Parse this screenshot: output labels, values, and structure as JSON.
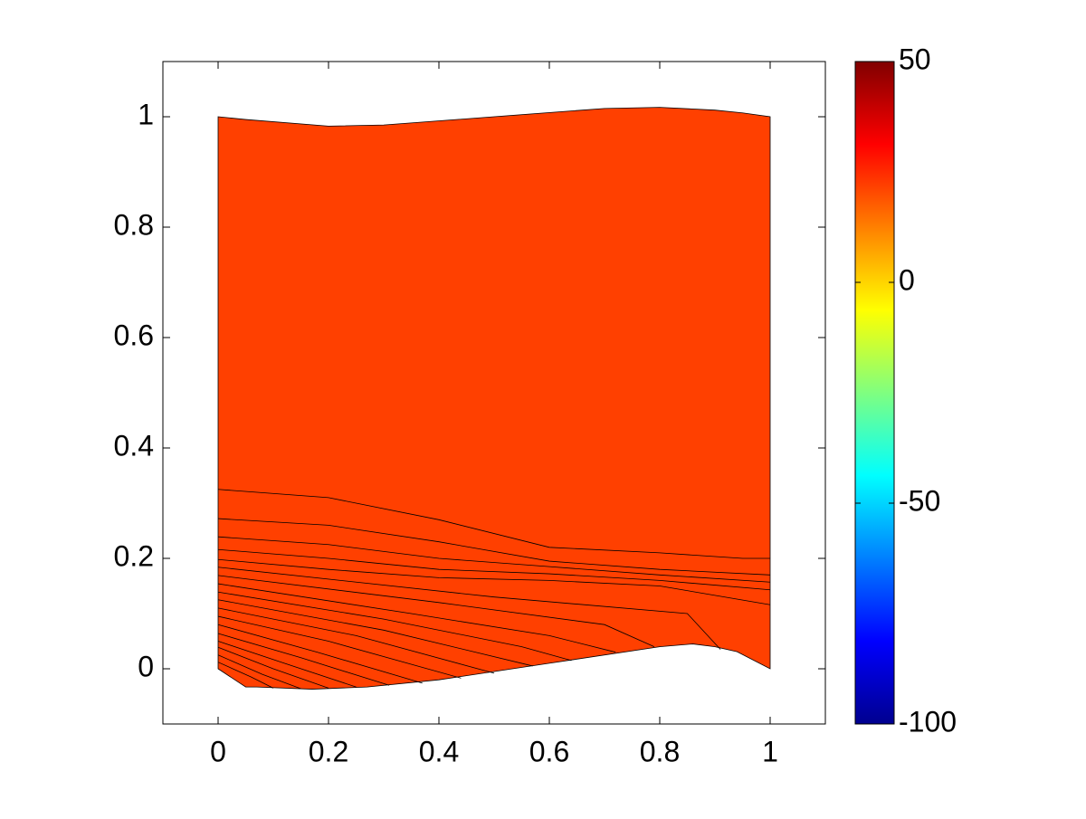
{
  "chart_data": {
    "type": "contour",
    "xlim": [
      -0.1,
      1.1
    ],
    "ylim": [
      -0.1,
      1.1
    ],
    "xticks": [
      0,
      0.2,
      0.4,
      0.6,
      0.8,
      1
    ],
    "yticks": [
      0,
      0.2,
      0.4,
      0.6,
      0.8,
      1
    ],
    "fill_color": "#ff4000",
    "line_color": "#000000",
    "boundary": {
      "x": [
        0,
        0.05,
        0.2,
        0.3,
        0.5,
        0.7,
        0.8,
        0.9,
        0.95,
        1,
        1,
        0.94,
        0.9,
        0.86,
        0.8,
        0.6,
        0.4,
        0.27,
        0.17,
        0.07,
        0.05,
        0
      ],
      "y": [
        1,
        0.995,
        0.983,
        0.985,
        1.0,
        1.015,
        1.017,
        1.012,
        1.007,
        1.0,
        0,
        0.031,
        0.04,
        0.045,
        0.04,
        0.01,
        -0.02,
        -0.033,
        -0.037,
        -0.033,
        -0.033,
        0
      ]
    },
    "contour_lines": [
      {
        "x": [
          0,
          0.2,
          0.4,
          0.6,
          0.8,
          0.95,
          1
        ],
        "y": [
          0.325,
          0.31,
          0.27,
          0.22,
          0.21,
          0.2,
          0.2
        ]
      },
      {
        "x": [
          0,
          0.2,
          0.4,
          0.6,
          0.8,
          1
        ],
        "y": [
          0.272,
          0.26,
          0.23,
          0.195,
          0.18,
          0.17
        ]
      },
      {
        "x": [
          0,
          0.2,
          0.4,
          0.6,
          0.8,
          1
        ],
        "y": [
          0.239,
          0.225,
          0.2,
          0.185,
          0.17,
          0.157
        ]
      },
      {
        "x": [
          0,
          0.2,
          0.4,
          0.6,
          0.8,
          1
        ],
        "y": [
          0.216,
          0.2,
          0.18,
          0.172,
          0.16,
          0.143
        ]
      },
      {
        "x": [
          0,
          0.2,
          0.4,
          0.6,
          0.8,
          1
        ],
        "y": [
          0.198,
          0.18,
          0.165,
          0.16,
          0.15,
          0.116
        ]
      },
      {
        "x": [
          0,
          0.5,
          0.85,
          0.91
        ],
        "y": [
          0.184,
          0.13,
          0.1,
          0.035
        ]
      },
      {
        "x": [
          0,
          0.4,
          0.7,
          0.79
        ],
        "y": [
          0.169,
          0.12,
          0.08,
          0.04
        ]
      },
      {
        "x": [
          0,
          0.35,
          0.6,
          0.72
        ],
        "y": [
          0.154,
          0.1,
          0.06,
          0.03
        ]
      },
      {
        "x": [
          0,
          0.3,
          0.55,
          0.64
        ],
        "y": [
          0.139,
          0.09,
          0.04,
          0.015
        ]
      },
      {
        "x": [
          0,
          0.3,
          0.57
        ],
        "y": [
          0.125,
          0.07,
          0.005
        ]
      },
      {
        "x": [
          0,
          0.25,
          0.5
        ],
        "y": [
          0.11,
          0.06,
          -0.008
        ]
      },
      {
        "x": [
          0,
          0.2,
          0.44
        ],
        "y": [
          0.095,
          0.05,
          -0.017
        ]
      },
      {
        "x": [
          0,
          0.18,
          0.37
        ],
        "y": [
          0.08,
          0.03,
          -0.026
        ]
      },
      {
        "x": [
          0,
          0.15,
          0.31
        ],
        "y": [
          0.064,
          0.02,
          -0.03
        ]
      },
      {
        "x": [
          0,
          0.12,
          0.25
        ],
        "y": [
          0.05,
          0.01,
          -0.033
        ]
      },
      {
        "x": [
          0,
          0.1,
          0.2
        ],
        "y": [
          0.039,
          0.0,
          -0.035
        ]
      },
      {
        "x": [
          0,
          0.08,
          0.15
        ],
        "y": [
          0.025,
          -0.01,
          -0.036
        ]
      },
      {
        "x": [
          0,
          0.06,
          0.1
        ],
        "y": [
          0.012,
          -0.015,
          -0.035
        ]
      }
    ],
    "colorbar": {
      "clim": [
        -100,
        50
      ],
      "ticks": [
        -100,
        -50,
        0,
        50
      ]
    }
  }
}
